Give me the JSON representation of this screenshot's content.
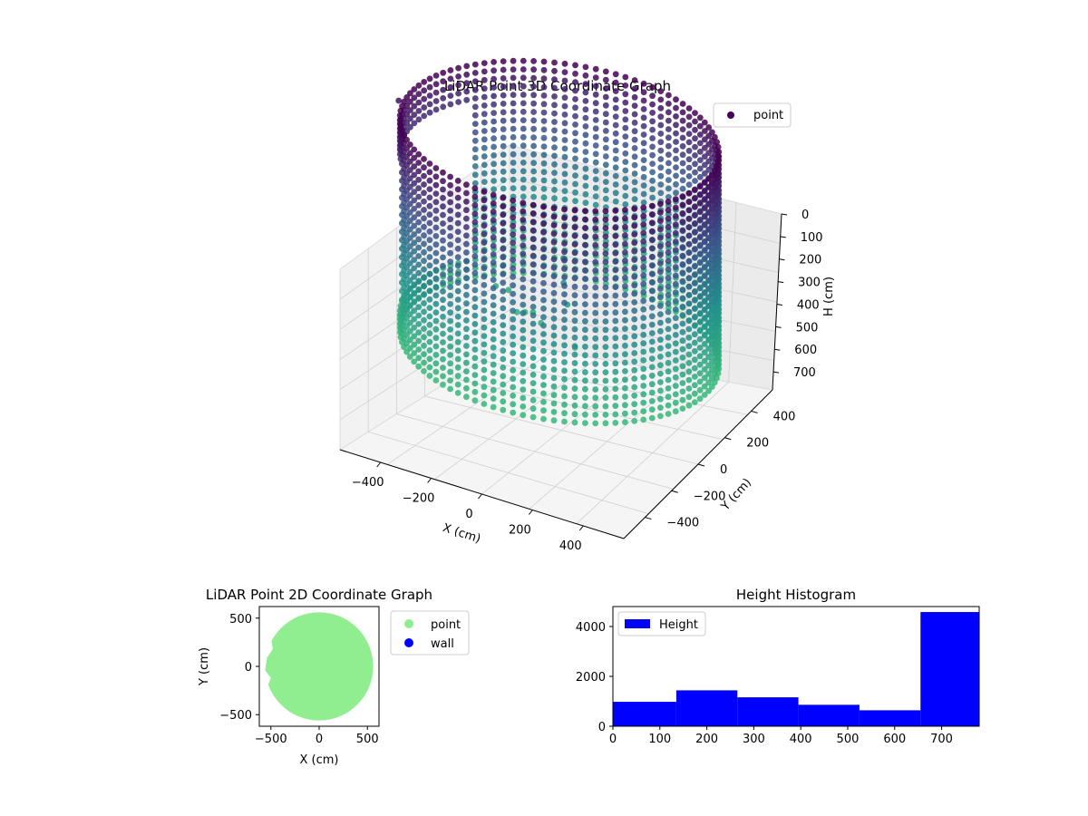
{
  "chart_data": [
    {
      "type": "scatter",
      "subtype": "3d",
      "title": "LiDAR Point 3D Coordinate Graph",
      "xlabel": "X (cm)",
      "ylabel": "Y (cm)",
      "zlabel": "H (cm)",
      "x_ticks": [
        "−400",
        "−200",
        "0",
        "200",
        "400"
      ],
      "y_ticks": [
        "−400",
        "−200",
        "0",
        "200",
        "400"
      ],
      "z_ticks": [
        "0",
        "100",
        "200",
        "300",
        "400",
        "500",
        "600",
        "700"
      ],
      "xlim": [
        -560,
        560
      ],
      "ylim": [
        -560,
        560
      ],
      "zlim": [
        0,
        780
      ],
      "z_inverted": true,
      "grid": true,
      "legend": {
        "placement": "top-right",
        "entries": [
          "point"
        ]
      },
      "series": [
        {
          "name": "point",
          "shape": "cylindrical wall of points, radius ~560 cm, height 0–780 cm, colored by height (viridis, purple at top, teal at bottom)",
          "colormap": [
            "#440154",
            "#3b528b",
            "#21918c",
            "#35b779"
          ]
        }
      ]
    },
    {
      "type": "scatter",
      "title": "LiDAR Point 2D Coordinate Graph",
      "xlabel": "X (cm)",
      "ylabel": "Y (cm)",
      "x_ticks": [
        "−500",
        "0",
        "500"
      ],
      "y_ticks": [
        "500",
        "0",
        "−500"
      ],
      "xlim": [
        -620,
        620
      ],
      "ylim": [
        -620,
        620
      ],
      "grid": false,
      "legend": {
        "placement": "outside-right",
        "entries": [
          "point",
          "wall"
        ]
      },
      "series": [
        {
          "name": "point",
          "color": "#90ee90",
          "shape": "filled disk of radius ~560 cm, with an irregular gap on the left edge"
        },
        {
          "name": "wall",
          "color": "#0000ff"
        }
      ]
    },
    {
      "type": "bar",
      "subtype": "histogram",
      "title": "Height Histogram",
      "xlabel": "",
      "ylabel": "",
      "x_ticks": [
        "0",
        "100",
        "200",
        "300",
        "400",
        "500",
        "600",
        "700"
      ],
      "y_ticks": [
        "0",
        "2000",
        "4000"
      ],
      "xlim": [
        0,
        780
      ],
      "ylim": [
        0,
        4800
      ],
      "bin_edges": [
        0,
        135,
        265,
        395,
        525,
        655,
        780
      ],
      "values": [
        980,
        1440,
        1160,
        860,
        640,
        4580
      ],
      "color": "#0000ff",
      "legend": {
        "placement": "top-left",
        "entries": [
          "Height"
        ]
      }
    }
  ]
}
